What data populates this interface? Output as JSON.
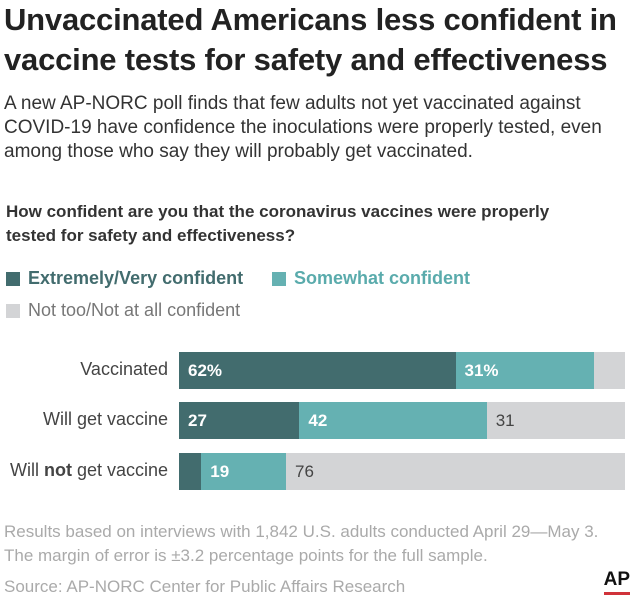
{
  "title_lines": [
    "Unvaccinated Americans less confident in",
    "vaccine tests for safety and effectiveness"
  ],
  "subtitle_lines": [
    "A new AP-NORC poll finds that few adults not yet vaccinated against",
    "COVID-19 have confidence the inoculations were properly tested, even",
    "among those who say they will probably get vaccinated."
  ],
  "question_lines": [
    "How confident are you that the coronavirus vaccines were properly",
    "tested for safety and effectiveness?"
  ],
  "chart_data": {
    "type": "bar",
    "orientation": "horizontal",
    "stacked": true,
    "categories": [
      "Vaccinated",
      "Will get vaccine",
      "Will not get vaccine"
    ],
    "series": [
      {
        "name": "Extremely/Very confident",
        "color": "#426c6e",
        "values": [
          62,
          27,
          5
        ],
        "labels": [
          "62%",
          "27",
          ""
        ]
      },
      {
        "name": "Somewhat confident",
        "color": "#65b1b2",
        "values": [
          31,
          42,
          19
        ],
        "labels": [
          "31%",
          "42",
          "19"
        ]
      },
      {
        "name": "Not too/Not at all confident",
        "color": "#d3d4d6",
        "values": [
          7,
          31,
          76
        ],
        "labels": [
          "",
          "31",
          "76"
        ]
      }
    ],
    "xlim": [
      0,
      100
    ]
  },
  "category_parts": [
    [
      "Vaccinated",
      "",
      ""
    ],
    [
      "Will get vaccine",
      "",
      ""
    ],
    [
      "Will ",
      "not",
      " get vaccine"
    ]
  ],
  "footer": {
    "note_lines": [
      "Results based on interviews with 1,842 U.S. adults conducted April 29—May 3.",
      "The margin of error is ±3.2 percentage points for the full sample."
    ],
    "source": "Source: AP-NORC Center for Public Affairs Research",
    "logo": "AP"
  }
}
